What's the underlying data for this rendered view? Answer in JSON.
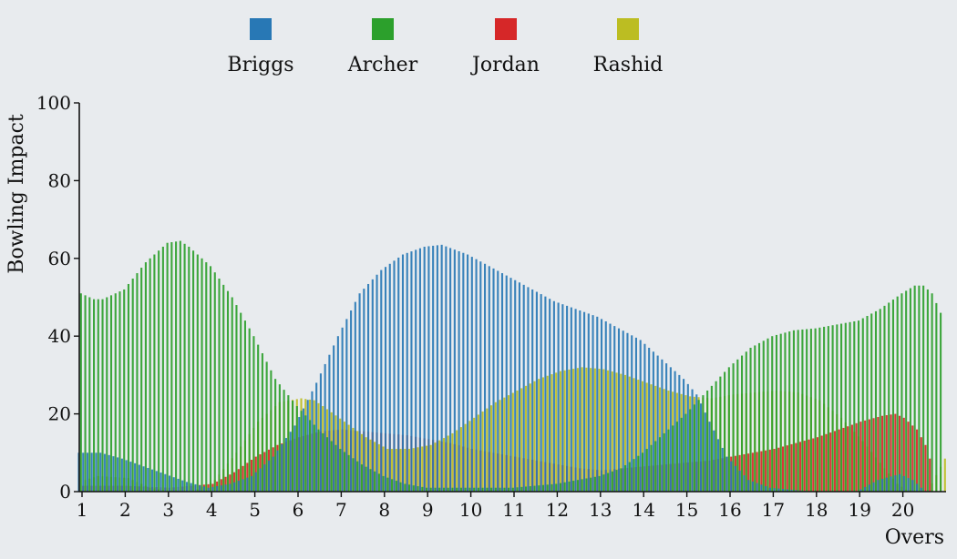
{
  "chart_data": {
    "type": "bar",
    "title": "",
    "xlabel": "Overs",
    "ylabel": "Bowling Impact",
    "xlim": [
      1,
      20.9
    ],
    "ylim": [
      0,
      100
    ],
    "x_ticks": [
      1,
      2,
      3,
      4,
      5,
      6,
      7,
      8,
      9,
      10,
      11,
      12,
      13,
      14,
      15,
      16,
      17,
      18,
      19,
      20
    ],
    "y_ticks": [
      0,
      20,
      40,
      60,
      80,
      100
    ],
    "grid": false,
    "legend_position": "top",
    "sample_step": 0.1,
    "series": [
      {
        "name": "Briggs",
        "color": "#2878b5",
        "points": [
          [
            1.0,
            10
          ],
          [
            1.5,
            10
          ],
          [
            2.0,
            8.5
          ],
          [
            2.5,
            6.5
          ],
          [
            3.0,
            4.5
          ],
          [
            3.5,
            2.5
          ],
          [
            4.0,
            1
          ],
          [
            4.5,
            2
          ],
          [
            5.0,
            4
          ],
          [
            5.5,
            9
          ],
          [
            6.0,
            17
          ],
          [
            6.5,
            28
          ],
          [
            7.0,
            40
          ],
          [
            7.5,
            51
          ],
          [
            8.0,
            57
          ],
          [
            8.5,
            61
          ],
          [
            9.0,
            63
          ],
          [
            9.4,
            63.5
          ],
          [
            10.0,
            61
          ],
          [
            10.5,
            58
          ],
          [
            11.0,
            55
          ],
          [
            11.5,
            52
          ],
          [
            12.0,
            49
          ],
          [
            12.5,
            47
          ],
          [
            13.0,
            45
          ],
          [
            13.5,
            42
          ],
          [
            14.0,
            39
          ],
          [
            14.5,
            34
          ],
          [
            15.0,
            29
          ],
          [
            15.3,
            25
          ],
          [
            15.6,
            18
          ],
          [
            16.0,
            9
          ],
          [
            16.5,
            3
          ],
          [
            17.0,
            1
          ],
          [
            18.0,
            0
          ],
          [
            19.0,
            0
          ],
          [
            19.5,
            3
          ],
          [
            20.0,
            4.5
          ],
          [
            20.3,
            3
          ],
          [
            20.6,
            0
          ]
        ]
      },
      {
        "name": "Archer",
        "color": "#2ca02c",
        "points": [
          [
            1.0,
            51
          ],
          [
            1.3,
            49.5
          ],
          [
            1.5,
            49.5
          ],
          [
            2.0,
            52
          ],
          [
            2.5,
            59
          ],
          [
            3.0,
            64
          ],
          [
            3.3,
            64.5
          ],
          [
            3.5,
            63
          ],
          [
            4.0,
            58
          ],
          [
            4.5,
            50
          ],
          [
            5.0,
            40
          ],
          [
            5.5,
            29
          ],
          [
            6.0,
            22
          ],
          [
            6.5,
            16
          ],
          [
            7.0,
            11
          ],
          [
            7.5,
            7
          ],
          [
            8.0,
            4
          ],
          [
            8.5,
            2
          ],
          [
            9.0,
            1
          ],
          [
            10.0,
            1
          ],
          [
            11.0,
            1
          ],
          [
            12.0,
            2
          ],
          [
            13.0,
            4
          ],
          [
            13.5,
            6
          ],
          [
            14.0,
            10
          ],
          [
            14.5,
            15
          ],
          [
            15.0,
            20
          ],
          [
            15.5,
            26
          ],
          [
            16.0,
            32
          ],
          [
            16.5,
            37
          ],
          [
            17.0,
            40
          ],
          [
            17.5,
            41.5
          ],
          [
            18.0,
            42
          ],
          [
            18.5,
            43
          ],
          [
            19.0,
            44
          ],
          [
            19.5,
            47
          ],
          [
            20.0,
            51
          ],
          [
            20.3,
            53
          ],
          [
            20.5,
            53
          ],
          [
            20.7,
            51
          ],
          [
            20.9,
            46
          ]
        ]
      },
      {
        "name": "Jordan",
        "color": "#d62728",
        "points": [
          [
            1.0,
            1.5
          ],
          [
            2.0,
            1.5
          ],
          [
            3.0,
            1
          ],
          [
            4.0,
            2
          ],
          [
            4.5,
            5
          ],
          [
            5.0,
            9
          ],
          [
            5.5,
            12
          ],
          [
            6.0,
            14
          ],
          [
            6.5,
            15.5
          ],
          [
            7.0,
            16
          ],
          [
            7.5,
            15.5
          ],
          [
            8.0,
            15
          ],
          [
            8.5,
            14.5
          ],
          [
            9.0,
            13.5
          ],
          [
            9.5,
            12.5
          ],
          [
            10.0,
            11
          ],
          [
            10.5,
            10
          ],
          [
            11.0,
            9
          ],
          [
            11.5,
            8
          ],
          [
            12.0,
            7
          ],
          [
            12.5,
            6
          ],
          [
            13.0,
            5.5
          ],
          [
            13.5,
            6
          ],
          [
            14.0,
            6.5
          ],
          [
            14.5,
            7
          ],
          [
            15.0,
            7.5
          ],
          [
            15.5,
            8
          ],
          [
            16.0,
            9
          ],
          [
            16.5,
            10
          ],
          [
            17.0,
            11
          ],
          [
            17.5,
            12.5
          ],
          [
            18.0,
            14
          ],
          [
            18.5,
            16
          ],
          [
            19.0,
            18
          ],
          [
            19.5,
            19.5
          ],
          [
            19.8,
            20
          ],
          [
            20.0,
            19
          ],
          [
            20.3,
            16
          ],
          [
            20.5,
            12
          ],
          [
            20.6,
            8.5
          ],
          [
            20.7,
            0
          ]
        ]
      },
      {
        "name": "Rashid",
        "color": "#bcbd22",
        "points": [
          [
            1.0,
            3
          ],
          [
            1.3,
            4
          ],
          [
            2.0,
            3.5
          ],
          [
            2.5,
            1
          ],
          [
            3.0,
            0
          ],
          [
            3.5,
            0
          ],
          [
            4.0,
            3
          ],
          [
            4.5,
            10
          ],
          [
            5.0,
            18
          ],
          [
            5.5,
            23
          ],
          [
            6.0,
            24
          ],
          [
            6.3,
            23.5
          ],
          [
            6.5,
            22
          ],
          [
            7.0,
            18
          ],
          [
            7.5,
            14
          ],
          [
            8.0,
            11
          ],
          [
            8.5,
            11
          ],
          [
            9.0,
            12
          ],
          [
            9.5,
            15
          ],
          [
            10.0,
            19
          ],
          [
            10.5,
            23
          ],
          [
            11.0,
            26
          ],
          [
            11.5,
            29
          ],
          [
            12.0,
            31
          ],
          [
            12.5,
            32
          ],
          [
            13.0,
            31.5
          ],
          [
            13.5,
            30
          ],
          [
            14.0,
            28
          ],
          [
            14.5,
            26
          ],
          [
            15.0,
            24.5
          ],
          [
            15.5,
            24
          ],
          [
            16.0,
            25
          ],
          [
            16.5,
            25.5
          ],
          [
            17.0,
            26
          ],
          [
            17.5,
            25.5
          ],
          [
            18.0,
            23.5
          ],
          [
            18.5,
            19
          ],
          [
            19.0,
            13
          ],
          [
            19.5,
            6
          ],
          [
            19.8,
            2
          ],
          [
            20.0,
            0.5
          ],
          [
            20.5,
            0
          ],
          [
            20.9,
            8.5
          ]
        ]
      }
    ]
  }
}
